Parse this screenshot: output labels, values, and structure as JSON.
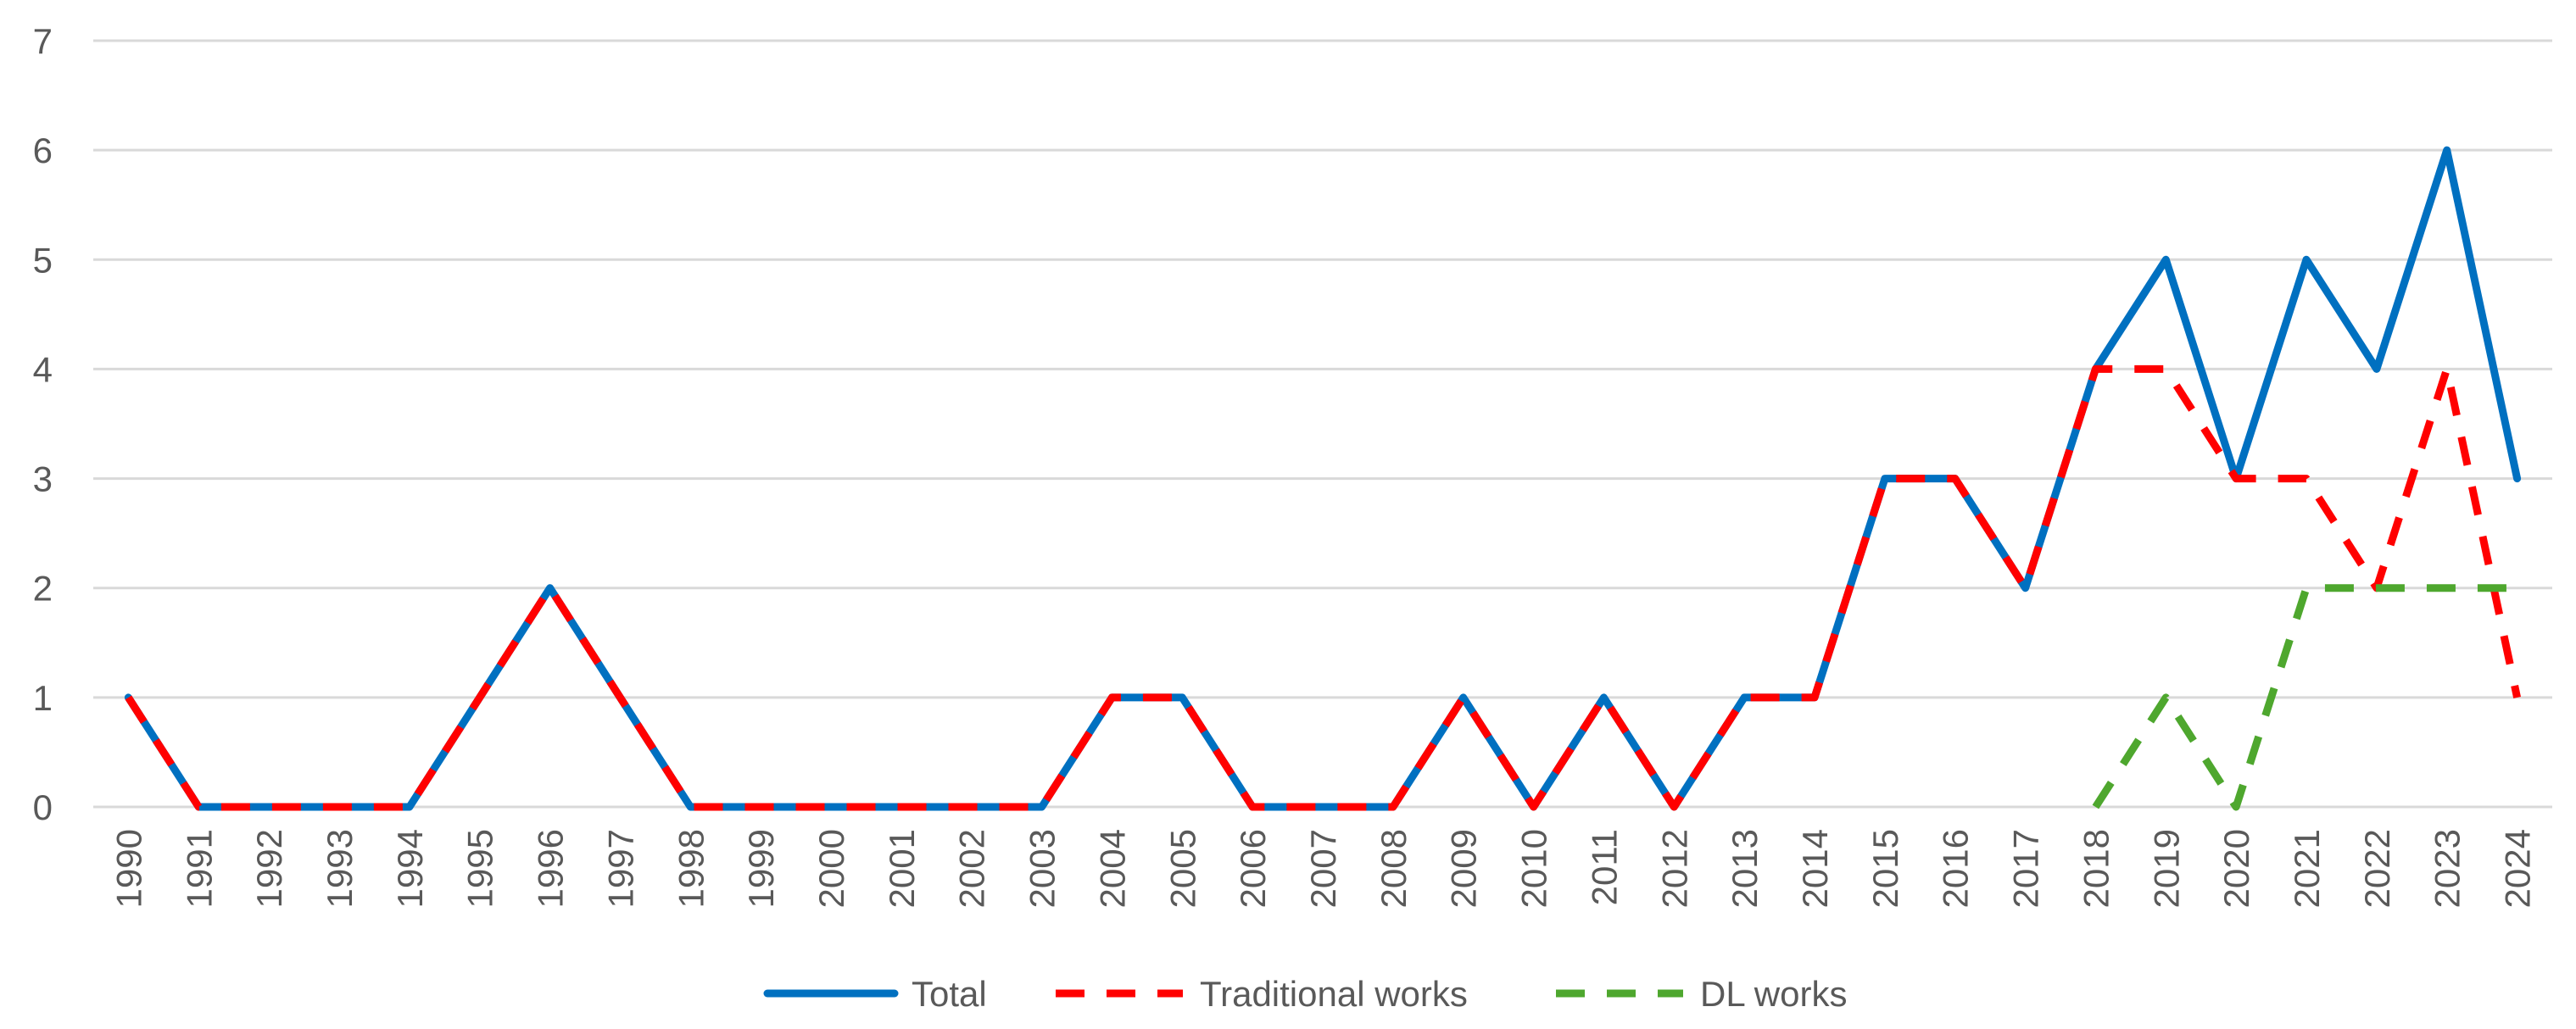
{
  "chart_data": {
    "type": "line",
    "title": "",
    "xlabel": "",
    "ylabel": "",
    "ylim": [
      0,
      7
    ],
    "yticks": [
      0,
      1,
      2,
      3,
      4,
      5,
      6,
      7
    ],
    "grid": true,
    "legend_position": "bottom",
    "categories": [
      "1990",
      "1991",
      "1992",
      "1993",
      "1994",
      "1995",
      "1996",
      "1997",
      "1998",
      "1999",
      "2000",
      "2001",
      "2002",
      "2003",
      "2004",
      "2005",
      "2006",
      "2007",
      "2008",
      "2009",
      "2010",
      "2011",
      "2012",
      "2013",
      "2014",
      "2015",
      "2016",
      "2017",
      "2018",
      "2019",
      "2020",
      "2021",
      "2022",
      "2023",
      "2024"
    ],
    "series": [
      {
        "name": "Total",
        "color": "#0070c0",
        "dash": "solid",
        "values": [
          1,
          0,
          0,
          0,
          0,
          1,
          2,
          1,
          0,
          0,
          0,
          0,
          0,
          0,
          1,
          1,
          0,
          0,
          0,
          1,
          0,
          1,
          0,
          1,
          1,
          3,
          3,
          2,
          4,
          5,
          3,
          5,
          4,
          6,
          3
        ]
      },
      {
        "name": "Traditional works",
        "color": "#ff0000",
        "dash": "dashed",
        "values": [
          1,
          0,
          0,
          0,
          0,
          1,
          2,
          1,
          0,
          0,
          0,
          0,
          0,
          0,
          1,
          1,
          0,
          0,
          0,
          1,
          0,
          1,
          0,
          1,
          1,
          3,
          3,
          2,
          4,
          4,
          3,
          3,
          2,
          4,
          1
        ]
      },
      {
        "name": "DL works",
        "color": "#4ea72e",
        "dash": "dashed",
        "values": [
          null,
          null,
          null,
          null,
          null,
          null,
          null,
          null,
          null,
          null,
          null,
          null,
          null,
          null,
          null,
          null,
          null,
          null,
          null,
          null,
          null,
          null,
          null,
          null,
          null,
          null,
          null,
          null,
          0,
          1,
          0,
          2,
          2,
          2,
          2
        ]
      }
    ]
  }
}
